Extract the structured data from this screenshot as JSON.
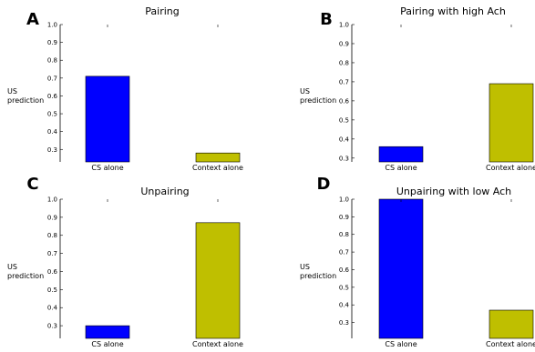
{
  "chart_data": [
    {
      "panel_label": "A",
      "type": "bar",
      "title": "Pairing",
      "ylabel": "US\nprediction",
      "categories": [
        "CS alone",
        "Context alone"
      ],
      "values": [
        0.71,
        0.28
      ],
      "colors": [
        "#0000ff",
        "#bfbf00"
      ],
      "ylim": [
        0.23,
        1.0
      ],
      "yticks": [
        "0.3",
        "0.4",
        "0.5",
        "0.6",
        "0.7",
        "0.8",
        "0.9",
        "1.0"
      ],
      "grid": false
    },
    {
      "panel_label": "B",
      "type": "bar",
      "title": "Pairing with high Ach",
      "ylabel": "US\nprediction",
      "categories": [
        "CS alone",
        "Context alone"
      ],
      "values": [
        0.36,
        0.69
      ],
      "colors": [
        "#0000ff",
        "#bfbf00"
      ],
      "ylim": [
        0.28,
        1.0
      ],
      "yticks": [
        "0.3",
        "0.4",
        "0.5",
        "0.6",
        "0.7",
        "0.8",
        "0.9",
        "1.0"
      ],
      "grid": false
    },
    {
      "panel_label": "C",
      "type": "bar",
      "title": "Unpairing",
      "ylabel": "US\nprediction",
      "categories": [
        "CS alone",
        "Context alone"
      ],
      "values": [
        0.3,
        0.87
      ],
      "colors": [
        "#0000ff",
        "#bfbf00"
      ],
      "ylim": [
        0.23,
        1.0
      ],
      "yticks": [
        "0.3",
        "0.4",
        "0.5",
        "0.6",
        "0.7",
        "0.8",
        "0.9",
        "1.0"
      ],
      "grid": false
    },
    {
      "panel_label": "D",
      "type": "bar",
      "title": "Unpairing with low Ach",
      "ylabel": "US\nprediction",
      "categories": [
        "CS alone",
        "Context alone"
      ],
      "values": [
        1.0,
        0.37
      ],
      "colors": [
        "#0000ff",
        "#bfbf00"
      ],
      "ylim": [
        0.21,
        1.0
      ],
      "yticks": [
        "0.3",
        "0.4",
        "0.5",
        "0.6",
        "0.7",
        "0.8",
        "0.9",
        "1.0"
      ],
      "grid": false
    }
  ]
}
